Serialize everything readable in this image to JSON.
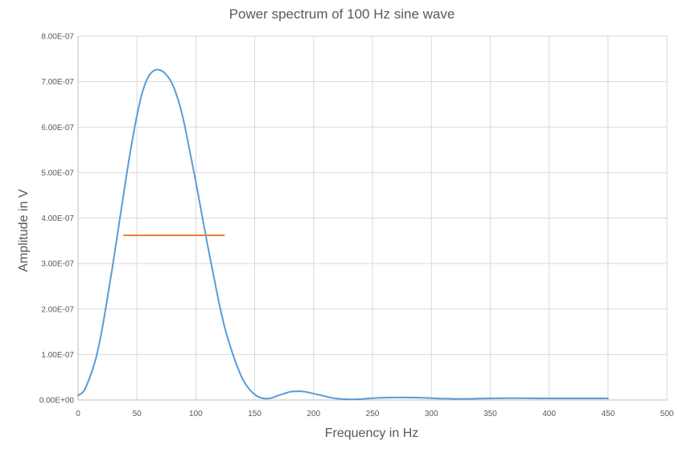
{
  "chart_data": {
    "type": "line",
    "title": "Power spectrum of 100 Hz sine wave",
    "xlabel": "Frequency in Hz",
    "ylabel": "Amplitude in V",
    "xlim": [
      0,
      500
    ],
    "ylim": [
      0,
      8e-07
    ],
    "x_ticks": [
      0,
      50,
      100,
      150,
      200,
      250,
      300,
      350,
      400,
      450,
      500
    ],
    "x_tick_labels": [
      "0",
      "50",
      "100",
      "150",
      "200",
      "250",
      "300",
      "350",
      "400",
      "450",
      "500"
    ],
    "y_ticks": [
      0,
      1e-07,
      2e-07,
      3e-07,
      4e-07,
      5e-07,
      6e-07,
      7e-07,
      8e-07
    ],
    "y_tick_labels": [
      "0.00E+00",
      "1.00E-07",
      "2.00E-07",
      "3.00E-07",
      "4.00E-07",
      "5.00E-07",
      "6.00E-07",
      "7.00E-07",
      "8.00E-07"
    ],
    "grid": true,
    "legend": "none",
    "series": [
      {
        "color": "#5b9bd5",
        "x": [
          0,
          5,
          10,
          15,
          20,
          25,
          30,
          35,
          40,
          45,
          50,
          55,
          60,
          65,
          70,
          75,
          80,
          85,
          90,
          95,
          100,
          105,
          110,
          115,
          120,
          125,
          130,
          135,
          140,
          145,
          150,
          155,
          160,
          165,
          170,
          175,
          180,
          185,
          190,
          195,
          200,
          205,
          210,
          215,
          220,
          225,
          230,
          235,
          240,
          245,
          250,
          260,
          270,
          280,
          290,
          300,
          310,
          320,
          330,
          340,
          350,
          360,
          370,
          380,
          390,
          400,
          410,
          420,
          430,
          440,
          450
        ],
        "y": [
          1e-08,
          2e-08,
          5e-08,
          9e-08,
          1.5e-07,
          2.25e-07,
          3.05e-07,
          3.9e-07,
          4.75e-07,
          5.55e-07,
          6.25e-07,
          6.8e-07,
          7.12e-07,
          7.25e-07,
          7.25e-07,
          7.15e-07,
          6.95e-07,
          6.6e-07,
          6.1e-07,
          5.45e-07,
          4.8e-07,
          4.1e-07,
          3.4e-07,
          2.75e-07,
          2.1e-07,
          1.55e-07,
          1.12e-07,
          7.5e-08,
          4.5e-08,
          2.5e-08,
          1.2e-08,
          5e-09,
          3e-09,
          5e-09,
          1e-08,
          1.4e-08,
          1.8e-08,
          1.9e-08,
          1.9e-08,
          1.7e-08,
          1.4e-08,
          1.1e-08,
          8e-09,
          5e-09,
          3e-09,
          2e-09,
          1.5e-09,
          1.5e-09,
          2e-09,
          3e-09,
          4e-09,
          5e-09,
          5.5e-09,
          5.5e-09,
          5e-09,
          4e-09,
          3e-09,
          2.5e-09,
          2.5e-09,
          3e-09,
          3.5e-09,
          4e-09,
          4e-09,
          4e-09,
          3.5e-09,
          3.5e-09,
          3.5e-09,
          3.5e-09,
          3.5e-09,
          3.5e-09,
          3.5e-09
        ]
      },
      {
        "color": "#ed7d31",
        "x": [
          39,
          124
        ],
        "y": [
          3.62e-07,
          3.62e-07
        ]
      }
    ]
  }
}
